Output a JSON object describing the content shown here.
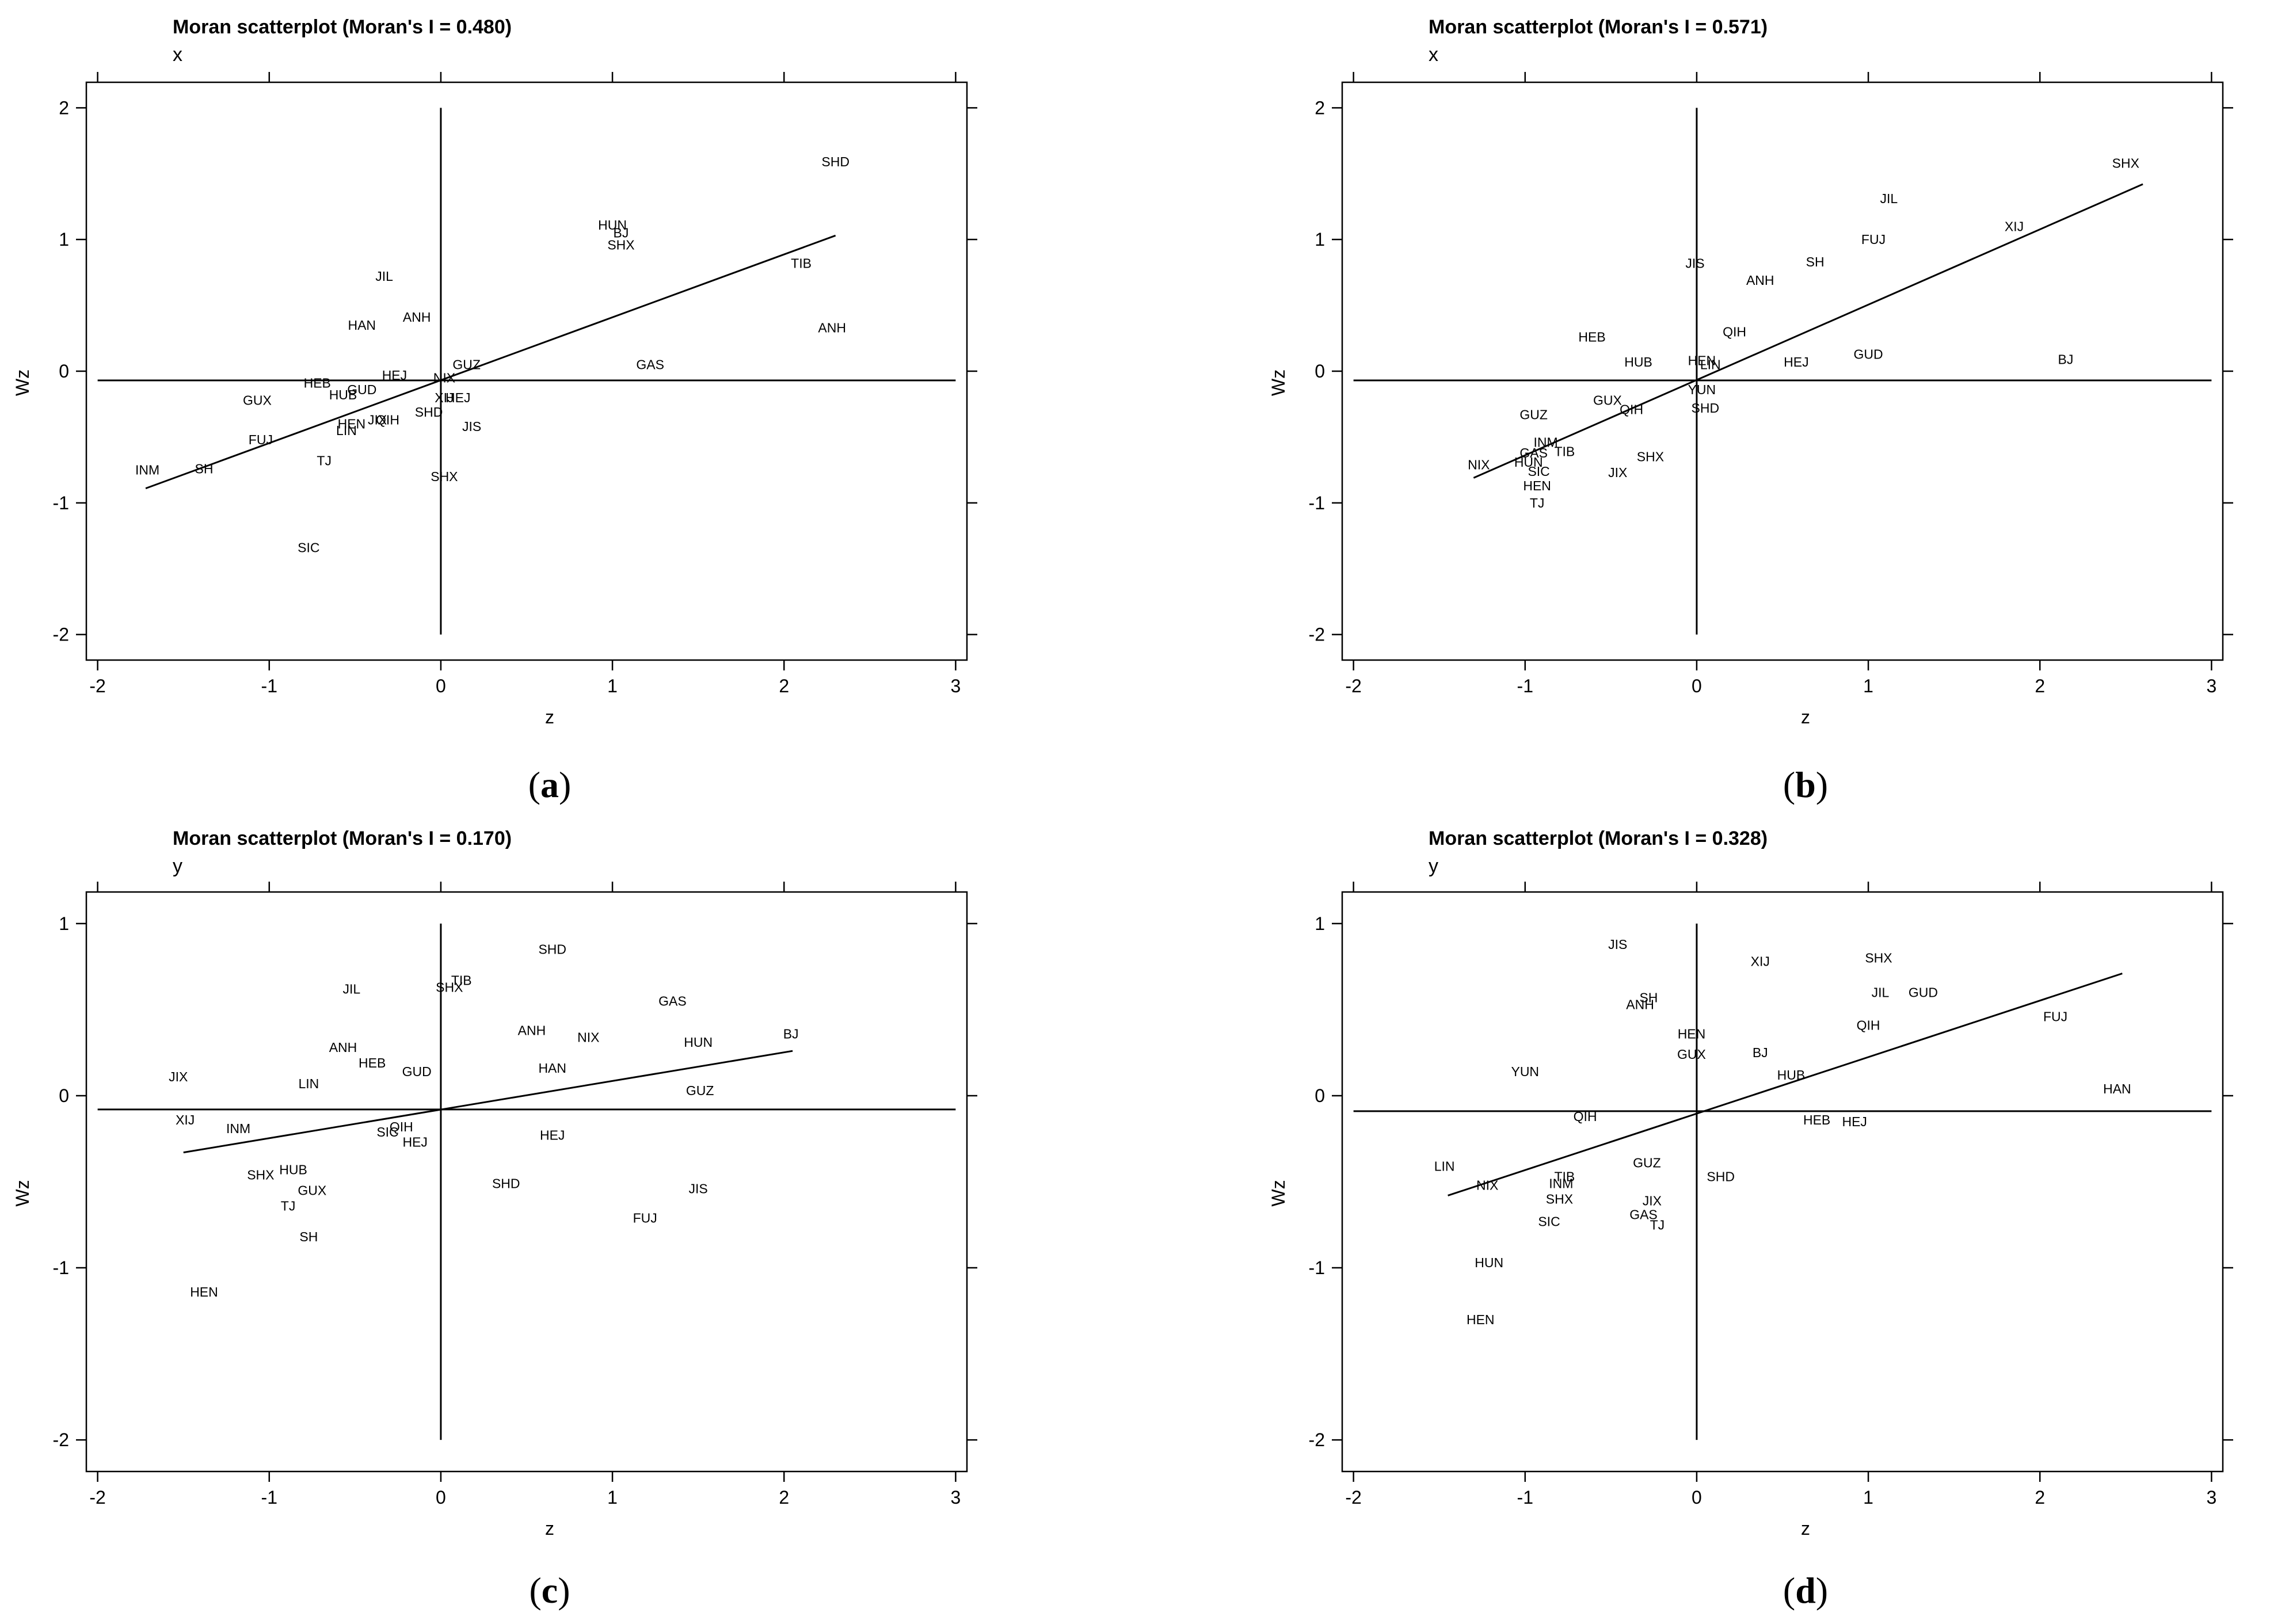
{
  "chart_data": [
    {
      "type": "scatter",
      "title": "Moran scatterplot (Moran's I = 0.480)",
      "variable": "x",
      "xlabel": "z",
      "ylabel": "Wz",
      "caption_label": "a",
      "xlim": [
        -2.2,
        3.2
      ],
      "ylim": [
        -2.15,
        2.15
      ],
      "xticks": [
        -2,
        -1,
        0,
        1,
        2,
        3
      ],
      "yticks": [
        -2,
        -1,
        0,
        1,
        2
      ],
      "mean_x": 0,
      "mean_y": -0.07,
      "fit_line": [
        [
          -1.72,
          -0.89
        ],
        [
          2.3,
          1.03
        ]
      ],
      "points": [
        {
          "label": "SHD",
          "x": 2.3,
          "y": 1.59
        },
        {
          "label": "HUN",
          "x": 1.0,
          "y": 1.11
        },
        {
          "label": "BJ",
          "x": 1.05,
          "y": 1.05
        },
        {
          "label": "SHX",
          "x": 1.05,
          "y": 0.96
        },
        {
          "label": "TIB",
          "x": 2.1,
          "y": 0.82
        },
        {
          "label": "JIL",
          "x": -0.33,
          "y": 0.72
        },
        {
          "label": "ANH",
          "x": -0.14,
          "y": 0.41
        },
        {
          "label": "HAN",
          "x": -0.46,
          "y": 0.35
        },
        {
          "label": "ANH",
          "x": 2.28,
          "y": 0.33
        },
        {
          "label": "GAS",
          "x": 1.22,
          "y": 0.05
        },
        {
          "label": "GUZ",
          "x": 0.15,
          "y": 0.05
        },
        {
          "label": "HEJ",
          "x": -0.27,
          "y": -0.03
        },
        {
          "label": "NIX",
          "x": 0.02,
          "y": -0.05
        },
        {
          "label": "HEB",
          "x": -0.72,
          "y": -0.09
        },
        {
          "label": "GUD",
          "x": -0.46,
          "y": -0.14
        },
        {
          "label": "HUB",
          "x": -0.57,
          "y": -0.18
        },
        {
          "label": "GUX",
          "x": -1.07,
          "y": -0.22
        },
        {
          "label": "XIJ",
          "x": 0.02,
          "y": -0.2
        },
        {
          "label": "HEJ",
          "x": 0.1,
          "y": -0.2
        },
        {
          "label": "SHD",
          "x": -0.07,
          "y": -0.31
        },
        {
          "label": "JIX",
          "x": -0.37,
          "y": -0.37
        },
        {
          "label": "QIH",
          "x": -0.31,
          "y": -0.37
        },
        {
          "label": "HEN",
          "x": -0.52,
          "y": -0.4
        },
        {
          "label": "LIN",
          "x": -0.55,
          "y": -0.45
        },
        {
          "label": "JIS",
          "x": 0.18,
          "y": -0.42
        },
        {
          "label": "FUJ",
          "x": -1.05,
          "y": -0.52
        },
        {
          "label": "TJ",
          "x": -0.68,
          "y": -0.68
        },
        {
          "label": "INM",
          "x": -1.71,
          "y": -0.75
        },
        {
          "label": "SH",
          "x": -1.38,
          "y": -0.74
        },
        {
          "label": "SHX",
          "x": 0.02,
          "y": -0.8
        },
        {
          "label": "SIC",
          "x": -0.77,
          "y": -1.34
        }
      ]
    },
    {
      "type": "scatter",
      "title": "Moran scatterplot (Moran's I = 0.571)",
      "variable": "x",
      "xlabel": "z",
      "ylabel": "Wz",
      "caption_label": "b",
      "xlim": [
        -2.2,
        3.2
      ],
      "ylim": [
        -2.15,
        2.15
      ],
      "xticks": [
        -2,
        -1,
        0,
        1,
        2,
        3
      ],
      "yticks": [
        -2,
        -1,
        0,
        1,
        2
      ],
      "mean_x": 0,
      "mean_y": -0.07,
      "fit_line": [
        [
          -1.3,
          -0.81
        ],
        [
          2.6,
          1.42
        ]
      ],
      "points": [
        {
          "label": "SHX",
          "x": 2.5,
          "y": 1.58
        },
        {
          "label": "JIL",
          "x": 1.12,
          "y": 1.31
        },
        {
          "label": "XIJ",
          "x": 1.85,
          "y": 1.1
        },
        {
          "label": "FUJ",
          "x": 1.03,
          "y": 1.0
        },
        {
          "label": "JIS",
          "x": -0.01,
          "y": 0.82
        },
        {
          "label": "SH",
          "x": 0.69,
          "y": 0.83
        },
        {
          "label": "ANH",
          "x": 0.37,
          "y": 0.69
        },
        {
          "label": "QIH",
          "x": 0.22,
          "y": 0.3
        },
        {
          "label": "HEB",
          "x": -0.61,
          "y": 0.26
        },
        {
          "label": "GUD",
          "x": 1.0,
          "y": 0.13
        },
        {
          "label": "HUB",
          "x": -0.34,
          "y": 0.07
        },
        {
          "label": "HEN",
          "x": 0.03,
          "y": 0.08
        },
        {
          "label": "LIN",
          "x": 0.08,
          "y": 0.05
        },
        {
          "label": "HEJ",
          "x": 0.58,
          "y": 0.07
        },
        {
          "label": "BJ",
          "x": 2.15,
          "y": 0.09
        },
        {
          "label": "YUN",
          "x": 0.03,
          "y": -0.14
        },
        {
          "label": "GUX",
          "x": -0.52,
          "y": -0.22
        },
        {
          "label": "QIH",
          "x": -0.38,
          "y": -0.29
        },
        {
          "label": "SHD",
          "x": 0.05,
          "y": -0.28
        },
        {
          "label": "GUZ",
          "x": -0.95,
          "y": -0.33
        },
        {
          "label": "INM",
          "x": -0.88,
          "y": -0.54
        },
        {
          "label": "GAS",
          "x": -0.95,
          "y": -0.62
        },
        {
          "label": "TIB",
          "x": -0.77,
          "y": -0.61
        },
        {
          "label": "SHX",
          "x": -0.27,
          "y": -0.65
        },
        {
          "label": "HUN",
          "x": -0.98,
          "y": -0.69
        },
        {
          "label": "NIX",
          "x": -1.27,
          "y": -0.71
        },
        {
          "label": "SIC",
          "x": -0.92,
          "y": -0.76
        },
        {
          "label": "JIX",
          "x": -0.46,
          "y": -0.77
        },
        {
          "label": "HEN",
          "x": -0.93,
          "y": -0.87
        },
        {
          "label": "TJ",
          "x": -0.93,
          "y": -1.0
        }
      ]
    },
    {
      "type": "scatter",
      "title": "Moran scatterplot (Moran's I = 0.170)",
      "variable": "y",
      "xlabel": "z",
      "ylabel": "Wz",
      "caption_label": "c",
      "xlim": [
        -2.2,
        3.2
      ],
      "ylim": [
        -2.15,
        1.15
      ],
      "xticks": [
        -2,
        -1,
        0,
        1,
        2,
        3
      ],
      "yticks": [
        -2,
        -1,
        0,
        1
      ],
      "mean_x": 0,
      "mean_y": -0.08,
      "fit_line": [
        [
          -1.5,
          -0.33
        ],
        [
          2.05,
          0.26
        ]
      ],
      "points": [
        {
          "label": "SHD",
          "x": 0.65,
          "y": 0.85
        },
        {
          "label": "TIB",
          "x": 0.12,
          "y": 0.67
        },
        {
          "label": "SHX",
          "x": 0.05,
          "y": 0.63
        },
        {
          "label": "JIL",
          "x": -0.52,
          "y": 0.62
        },
        {
          "label": "GAS",
          "x": 1.35,
          "y": 0.55
        },
        {
          "label": "ANH",
          "x": 0.53,
          "y": 0.38
        },
        {
          "label": "NIX",
          "x": 0.86,
          "y": 0.34
        },
        {
          "label": "HUN",
          "x": 1.5,
          "y": 0.31
        },
        {
          "label": "BJ",
          "x": 2.04,
          "y": 0.36
        },
        {
          "label": "ANH",
          "x": -0.57,
          "y": 0.28
        },
        {
          "label": "HEB",
          "x": -0.4,
          "y": 0.19
        },
        {
          "label": "HAN",
          "x": 0.65,
          "y": 0.16
        },
        {
          "label": "GUD",
          "x": -0.14,
          "y": 0.14
        },
        {
          "label": "JIX",
          "x": -1.53,
          "y": 0.11
        },
        {
          "label": "LIN",
          "x": -0.77,
          "y": 0.07
        },
        {
          "label": "GUZ",
          "x": 1.51,
          "y": 0.03
        },
        {
          "label": "XIJ",
          "x": -1.49,
          "y": -0.14
        },
        {
          "label": "INM",
          "x": -1.18,
          "y": -0.19
        },
        {
          "label": "QIH",
          "x": -0.23,
          "y": -0.18
        },
        {
          "label": "SIC",
          "x": -0.31,
          "y": -0.21
        },
        {
          "label": "HEJ",
          "x": -0.15,
          "y": -0.27
        },
        {
          "label": "HEJ",
          "x": 0.65,
          "y": -0.23
        },
        {
          "label": "HUB",
          "x": -0.86,
          "y": -0.43
        },
        {
          "label": "SHX",
          "x": -1.05,
          "y": -0.46
        },
        {
          "label": "SHD",
          "x": 0.38,
          "y": -0.51
        },
        {
          "label": "GUX",
          "x": -0.75,
          "y": -0.55
        },
        {
          "label": "JIS",
          "x": 1.5,
          "y": -0.54
        },
        {
          "label": "TJ",
          "x": -0.89,
          "y": -0.64
        },
        {
          "label": "FUJ",
          "x": 1.19,
          "y": -0.71
        },
        {
          "label": "SH",
          "x": -0.77,
          "y": -0.82
        },
        {
          "label": "HEN",
          "x": -1.38,
          "y": -1.14
        }
      ]
    },
    {
      "type": "scatter",
      "title": "Moran scatterplot (Moran's I = 0.328)",
      "variable": "y",
      "xlabel": "z",
      "ylabel": "Wz",
      "caption_label": "d",
      "xlim": [
        -2.2,
        3.2
      ],
      "ylim": [
        -2.15,
        1.15
      ],
      "xticks": [
        -2,
        -1,
        0,
        1,
        2,
        3
      ],
      "yticks": [
        -2,
        -1,
        0,
        1
      ],
      "mean_x": 0,
      "mean_y": -0.09,
      "fit_line": [
        [
          -1.45,
          -0.58
        ],
        [
          2.48,
          0.71
        ]
      ],
      "points": [
        {
          "label": "JIS",
          "x": -0.46,
          "y": 0.88
        },
        {
          "label": "XIJ",
          "x": 0.37,
          "y": 0.78
        },
        {
          "label": "SHX",
          "x": 1.06,
          "y": 0.8
        },
        {
          "label": "JIL",
          "x": 1.07,
          "y": 0.6
        },
        {
          "label": "GUD",
          "x": 1.32,
          "y": 0.6
        },
        {
          "label": "SH",
          "x": -0.28,
          "y": 0.57
        },
        {
          "label": "ANH",
          "x": -0.33,
          "y": 0.53
        },
        {
          "label": "FUJ",
          "x": 2.09,
          "y": 0.46
        },
        {
          "label": "QIH",
          "x": 1.0,
          "y": 0.41
        },
        {
          "label": "HEN",
          "x": -0.03,
          "y": 0.36
        },
        {
          "label": "GUX",
          "x": -0.03,
          "y": 0.24
        },
        {
          "label": "BJ",
          "x": 0.37,
          "y": 0.25
        },
        {
          "label": "YUN",
          "x": -1.0,
          "y": 0.14
        },
        {
          "label": "HUB",
          "x": 0.55,
          "y": 0.12
        },
        {
          "label": "HAN",
          "x": 2.45,
          "y": 0.04
        },
        {
          "label": "QIH",
          "x": -0.65,
          "y": -0.12
        },
        {
          "label": "HEB",
          "x": 0.7,
          "y": -0.14
        },
        {
          "label": "HEJ",
          "x": 0.92,
          "y": -0.15
        },
        {
          "label": "GUZ",
          "x": -0.29,
          "y": -0.39
        },
        {
          "label": "LIN",
          "x": -1.47,
          "y": -0.41
        },
        {
          "label": "SHD",
          "x": 0.14,
          "y": -0.47
        },
        {
          "label": "TIB",
          "x": -0.77,
          "y": -0.47
        },
        {
          "label": "INM",
          "x": -0.79,
          "y": -0.51
        },
        {
          "label": "NIX",
          "x": -1.22,
          "y": -0.52
        },
        {
          "label": "SHX",
          "x": -0.8,
          "y": -0.6
        },
        {
          "label": "JIX",
          "x": -0.26,
          "y": -0.61
        },
        {
          "label": "GAS",
          "x": -0.31,
          "y": -0.69
        },
        {
          "label": "TJ",
          "x": -0.23,
          "y": -0.75
        },
        {
          "label": "SIC",
          "x": -0.86,
          "y": -0.73
        },
        {
          "label": "HUN",
          "x": -1.21,
          "y": -0.97
        },
        {
          "label": "HEN",
          "x": -1.26,
          "y": -1.3
        }
      ]
    }
  ]
}
